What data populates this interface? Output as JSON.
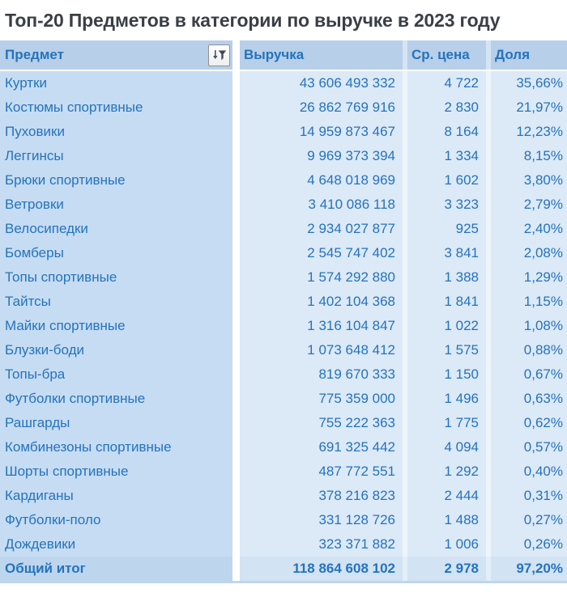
{
  "chart_data": {
    "type": "table",
    "title": "Топ-20 Предметов в категории по выручке в 2023 году",
    "columns": [
      "Предмет",
      "Выручка",
      "Ср. цена",
      "Доля"
    ],
    "rows": [
      [
        "Куртки",
        "43 606 493 332",
        "4 722",
        "35,66%"
      ],
      [
        "Костюмы спортивные",
        "26 862 769 916",
        "2 830",
        "21,97%"
      ],
      [
        "Пуховики",
        "14 959 873 467",
        "8 164",
        "12,23%"
      ],
      [
        "Леггинсы",
        "9 969 373 394",
        "1 334",
        "8,15%"
      ],
      [
        "Брюки спортивные",
        "4 648 018 969",
        "1 602",
        "3,80%"
      ],
      [
        "Ветровки",
        "3 410 086 118",
        "3 323",
        "2,79%"
      ],
      [
        "Велосипедки",
        "2 934 027 877",
        "925",
        "2,40%"
      ],
      [
        "Бомберы",
        "2 545 747 402",
        "3 841",
        "2,08%"
      ],
      [
        "Топы спортивные",
        "1 574 292 880",
        "1 388",
        "1,29%"
      ],
      [
        "Тайтсы",
        "1 402 104 368",
        "1 841",
        "1,15%"
      ],
      [
        "Майки спортивные",
        "1 316 104 847",
        "1 022",
        "1,08%"
      ],
      [
        "Блузки-боди",
        "1 073 648 412",
        "1 575",
        "0,88%"
      ],
      [
        "Топы-бра",
        "819 670 333",
        "1 150",
        "0,67%"
      ],
      [
        "Футболки спортивные",
        "775 359 000",
        "1 496",
        "0,63%"
      ],
      [
        "Рашгарды",
        "755 222 363",
        "1 775",
        "0,62%"
      ],
      [
        "Комбинезоны спортивные",
        "691 325 442",
        "4 094",
        "0,57%"
      ],
      [
        "Шорты спортивные",
        "487 772 551",
        "1 292",
        "0,40%"
      ],
      [
        "Кардиганы",
        "378 216 823",
        "2 444",
        "0,31%"
      ],
      [
        "Футболки-поло",
        "331 128 726",
        "1 488",
        "0,27%"
      ],
      [
        "Дождевики",
        "323 371 882",
        "1 006",
        "0,26%"
      ]
    ],
    "total_row": [
      "Общий итог",
      "118 864 608 102",
      "2 978",
      "97,20%"
    ],
    "legend_position": "none",
    "grid": false
  },
  "icons": {
    "filter_button": "sort-descending-filter-icon"
  },
  "colors": {
    "text_blue": "#2573bd",
    "title_text": "#3a3f46",
    "header_bg": "#b7cfe9",
    "row_label_bg": "#c6dcf3",
    "value_cell_bg": "#dce9f6",
    "total_label_bg": "#bed5ee",
    "total_value_bg": "#d2e3f3",
    "table_bottom_border": "#bcd6ee",
    "page_bg": "#ffffff"
  }
}
